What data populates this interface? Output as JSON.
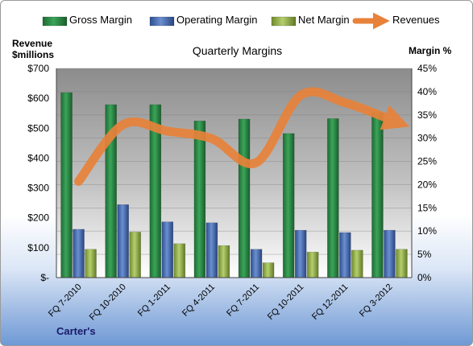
{
  "chart_data": {
    "type": "bar",
    "title": "Quarterly Margins",
    "categories": [
      "FQ 7-2010",
      "FQ 10-2010",
      "FQ 1-2011",
      "FQ 4-2011",
      "FQ 7-2011",
      "FQ 10-2011",
      "FQ 12-2011",
      "FQ 3-2012"
    ],
    "series": [
      {
        "name": "Gross Margin",
        "type": "bar",
        "axis": "right",
        "unit": "%",
        "values": [
          39.8,
          37.2,
          37.2,
          33.7,
          34.1,
          31.0,
          34.2,
          35.5
        ],
        "color": "#2e8b4a"
      },
      {
        "name": "Operating Margin",
        "type": "bar",
        "axis": "right",
        "unit": "%",
        "values": [
          10.4,
          15.7,
          12.0,
          11.8,
          6.1,
          10.2,
          9.7,
          10.2
        ],
        "color": "#4a72b8"
      },
      {
        "name": "Net Margin",
        "type": "bar",
        "axis": "right",
        "unit": "%",
        "values": [
          6.1,
          9.8,
          7.3,
          6.9,
          3.2,
          5.5,
          5.9,
          6.1
        ],
        "color": "#9bbb59"
      },
      {
        "name": "Revenues",
        "type": "line",
        "axis": "left",
        "unit": "$millions",
        "values": [
          322,
          512,
          490,
          465,
          385,
          610,
          585,
          530
        ],
        "color": "#e8823a"
      }
    ],
    "left_axis": {
      "label_line1": "Revenue",
      "label_line2": "$millions",
      "ticks": [
        "$-",
        "$100",
        "$200",
        "$300",
        "$400",
        "$500",
        "$600",
        "$700"
      ],
      "ylim": [
        0,
        700
      ]
    },
    "right_axis": {
      "label": "Margin %",
      "ticks": [
        "0%",
        "5%",
        "10%",
        "15%",
        "20%",
        "25%",
        "30%",
        "35%",
        "40%",
        "45%"
      ],
      "ylim": [
        0,
        45
      ]
    },
    "legend_position": "top",
    "grid": true
  },
  "footer": {
    "company": "Carter's"
  }
}
